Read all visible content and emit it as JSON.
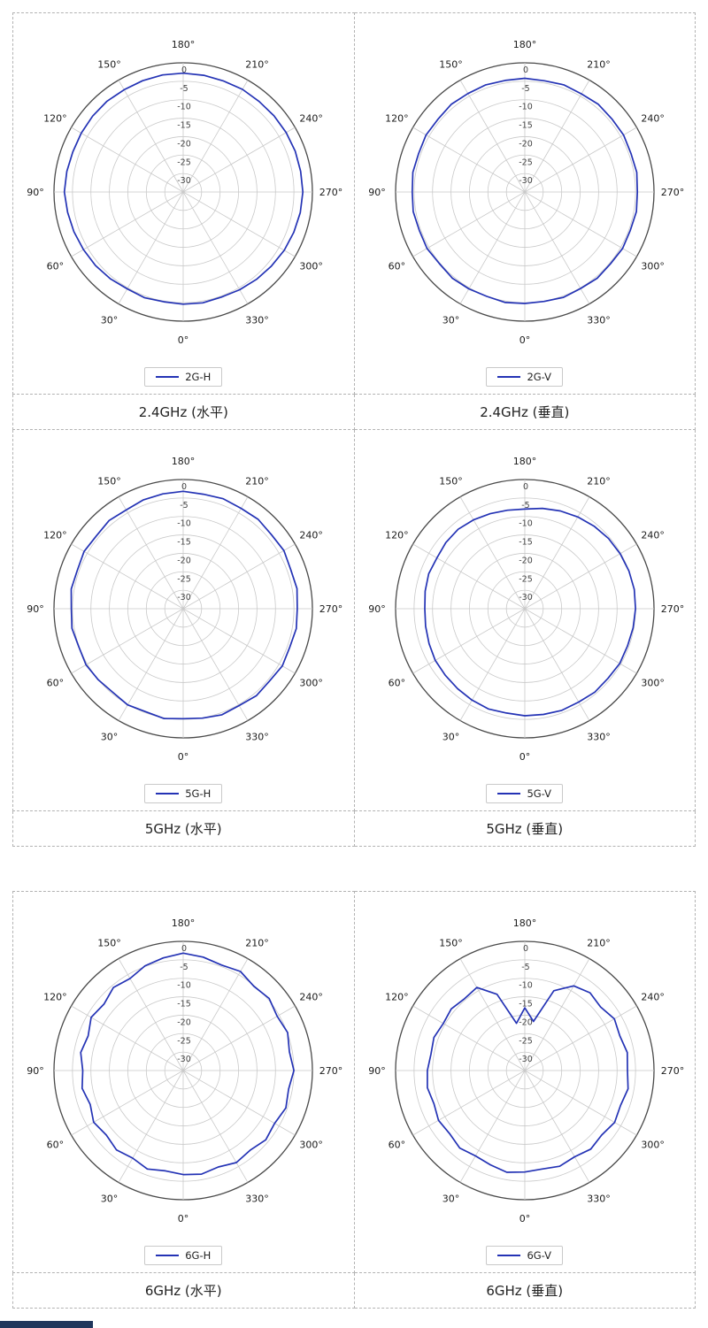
{
  "colors": {
    "line": "#2433b5",
    "grid": "#c9c9c9",
    "axis": "#4a4a4a",
    "angle_label": "#1a1a1a",
    "r_label": "#444444",
    "partial_bar": "#20365c"
  },
  "chart_data": [
    {
      "type": "line",
      "subtype": "polar",
      "legend": "2G-H",
      "caption": "2.4GHz (水平)",
      "angle_tick_labels": [
        "0°",
        "30°",
        "60°",
        "90°",
        "120°",
        "150°",
        "180°",
        "210°",
        "240°",
        "270°",
        "300°",
        "330°"
      ],
      "r_ticks": [
        0,
        -5,
        -10,
        -15,
        -20,
        -25,
        -30
      ],
      "r_min": -35,
      "angle_start_deg": 0,
      "angle_step_deg": 10,
      "values_db": [
        -4.6,
        -4.8,
        -4.5,
        -4.7,
        -4.3,
        -4.0,
        -3.8,
        -3.5,
        -3.2,
        -2.8,
        -3.0,
        -3.2,
        -3.1,
        -3.0,
        -2.9,
        -3.0,
        -2.9,
        -2.8,
        -2.8,
        -2.9,
        -3.0,
        -2.9,
        -3.0,
        -2.9,
        -2.8,
        -2.7,
        -2.7,
        -2.6,
        -2.8,
        -3.1,
        -3.4,
        -3.8,
        -4.1,
        -4.4,
        -4.7,
        -4.5
      ]
    },
    {
      "type": "line",
      "subtype": "polar",
      "legend": "2G-V",
      "caption": "2.4GHz (垂直)",
      "angle_tick_labels": [
        "0°",
        "30°",
        "60°",
        "90°",
        "120°",
        "150°",
        "180°",
        "210°",
        "240°",
        "270°",
        "300°",
        "330°"
      ],
      "r_ticks": [
        0,
        -5,
        -10,
        -15,
        -20,
        -25,
        -30
      ],
      "r_min": -35,
      "angle_start_deg": 0,
      "angle_step_deg": 10,
      "values_db": [
        -4.8,
        -4.6,
        -4.9,
        -4.7,
        -4.5,
        -4.8,
        -4.4,
        -4.6,
        -4.3,
        -4.5,
        -4.2,
        -4.4,
        -4.1,
        -4.3,
        -4.0,
        -4.2,
        -4.1,
        -4.3,
        -4.2,
        -4.4,
        -4.1,
        -4.3,
        -4.0,
        -4.2,
        -4.1,
        -4.4,
        -4.2,
        -4.5,
        -4.3,
        -4.6,
        -4.4,
        -4.7,
        -4.5,
        -4.8,
        -4.6,
        -4.9
      ]
    },
    {
      "type": "line",
      "subtype": "polar",
      "legend": "5G-H",
      "caption": "5GHz (水平)",
      "angle_tick_labels": [
        "0°",
        "30°",
        "60°",
        "90°",
        "120°",
        "150°",
        "180°",
        "210°",
        "240°",
        "270°",
        "300°",
        "330°"
      ],
      "r_ticks": [
        0,
        -5,
        -10,
        -15,
        -20,
        -25,
        -30
      ],
      "r_min": -35,
      "angle_start_deg": 0,
      "angle_step_deg": 10,
      "values_db": [
        -5.2,
        -4.8,
        -5.3,
        -4.9,
        -5.4,
        -5.0,
        -4.6,
        -4.9,
        -4.4,
        -4.7,
        -4.2,
        -4.5,
        -4.0,
        -4.3,
        -3.8,
        -4.1,
        -3.6,
        -3.4,
        -3.2,
        -3.5,
        -3.3,
        -3.6,
        -3.4,
        -3.8,
        -3.5,
        -4.0,
        -3.7,
        -4.1,
        -3.9,
        -4.3,
        -4.0,
        -4.5,
        -4.2,
        -4.7,
        -4.4,
        -4.9
      ]
    },
    {
      "type": "line",
      "subtype": "polar",
      "legend": "5G-V",
      "caption": "5GHz (垂直)",
      "angle_tick_labels": [
        "0°",
        "30°",
        "60°",
        "90°",
        "120°",
        "150°",
        "180°",
        "210°",
        "240°",
        "270°",
        "300°",
        "330°"
      ],
      "r_ticks": [
        0,
        -5,
        -10,
        -15,
        -20,
        -25,
        -30
      ],
      "r_min": -35,
      "angle_start_deg": 0,
      "angle_step_deg": 10,
      "values_db": [
        -6.0,
        -6.3,
        -6.1,
        -6.4,
        -6.7,
        -6.9,
        -7.0,
        -7.4,
        -7.7,
        -7.9,
        -7.6,
        -7.3,
        -7.5,
        -7.1,
        -6.9,
        -7.2,
        -7.6,
        -7.9,
        -8.0,
        -7.4,
        -6.8,
        -6.3,
        -5.8,
        -5.4,
        -5.2,
        -5.0,
        -4.9,
        -5.0,
        -5.2,
        -5.4,
        -5.3,
        -5.6,
        -5.5,
        -5.8,
        -5.7,
        -5.9
      ]
    },
    {
      "type": "line",
      "subtype": "polar",
      "legend": "6G-H",
      "caption": "6GHz (水平)",
      "angle_tick_labels": [
        "0°",
        "30°",
        "60°",
        "90°",
        "120°",
        "150°",
        "180°",
        "210°",
        "240°",
        "270°",
        "300°",
        "330°"
      ],
      "r_ticks": [
        0,
        -5,
        -10,
        -15,
        -20,
        -25,
        -30
      ],
      "r_min": -35,
      "angle_start_deg": 0,
      "angle_step_deg": 10,
      "values_db": [
        -6.8,
        -7.4,
        -6.6,
        -7.6,
        -6.9,
        -7.8,
        -7.0,
        -8.2,
        -7.2,
        -7.8,
        -6.8,
        -7.6,
        -6.2,
        -7.0,
        -5.6,
        -6.2,
        -4.8,
        -4.0,
        -3.2,
        -3.8,
        -4.6,
        -4.0,
        -5.2,
        -4.6,
        -5.6,
        -4.9,
        -5.8,
        -5.0,
        -6.0,
        -5.4,
        -6.4,
        -5.8,
        -6.8,
        -6.2,
        -7.2,
        -6.5
      ]
    },
    {
      "type": "line",
      "subtype": "polar",
      "legend": "6G-V",
      "caption": "6GHz (垂直)",
      "angle_tick_labels": [
        "0°",
        "30°",
        "60°",
        "90°",
        "120°",
        "150°",
        "180°",
        "210°",
        "240°",
        "270°",
        "300°",
        "330°"
      ],
      "r_ticks": [
        0,
        -5,
        -10,
        -15,
        -20,
        -25,
        -30
      ],
      "r_min": -35,
      "angle_start_deg": 0,
      "angle_step_deg": 10,
      "values_db": [
        -7.5,
        -7.0,
        -7.8,
        -8.3,
        -7.6,
        -8.4,
        -8.0,
        -8.8,
        -8.2,
        -8.6,
        -9.2,
        -8.8,
        -9.5,
        -9.0,
        -9.6,
        -9.0,
        -13.0,
        -22.0,
        -18.0,
        -21.5,
        -12.0,
        -8.5,
        -7.5,
        -8.2,
        -7.0,
        -7.6,
        -6.8,
        -7.2,
        -6.6,
        -7.4,
        -6.9,
        -7.8,
        -7.2,
        -8.0,
        -7.4,
        -7.9
      ]
    }
  ]
}
